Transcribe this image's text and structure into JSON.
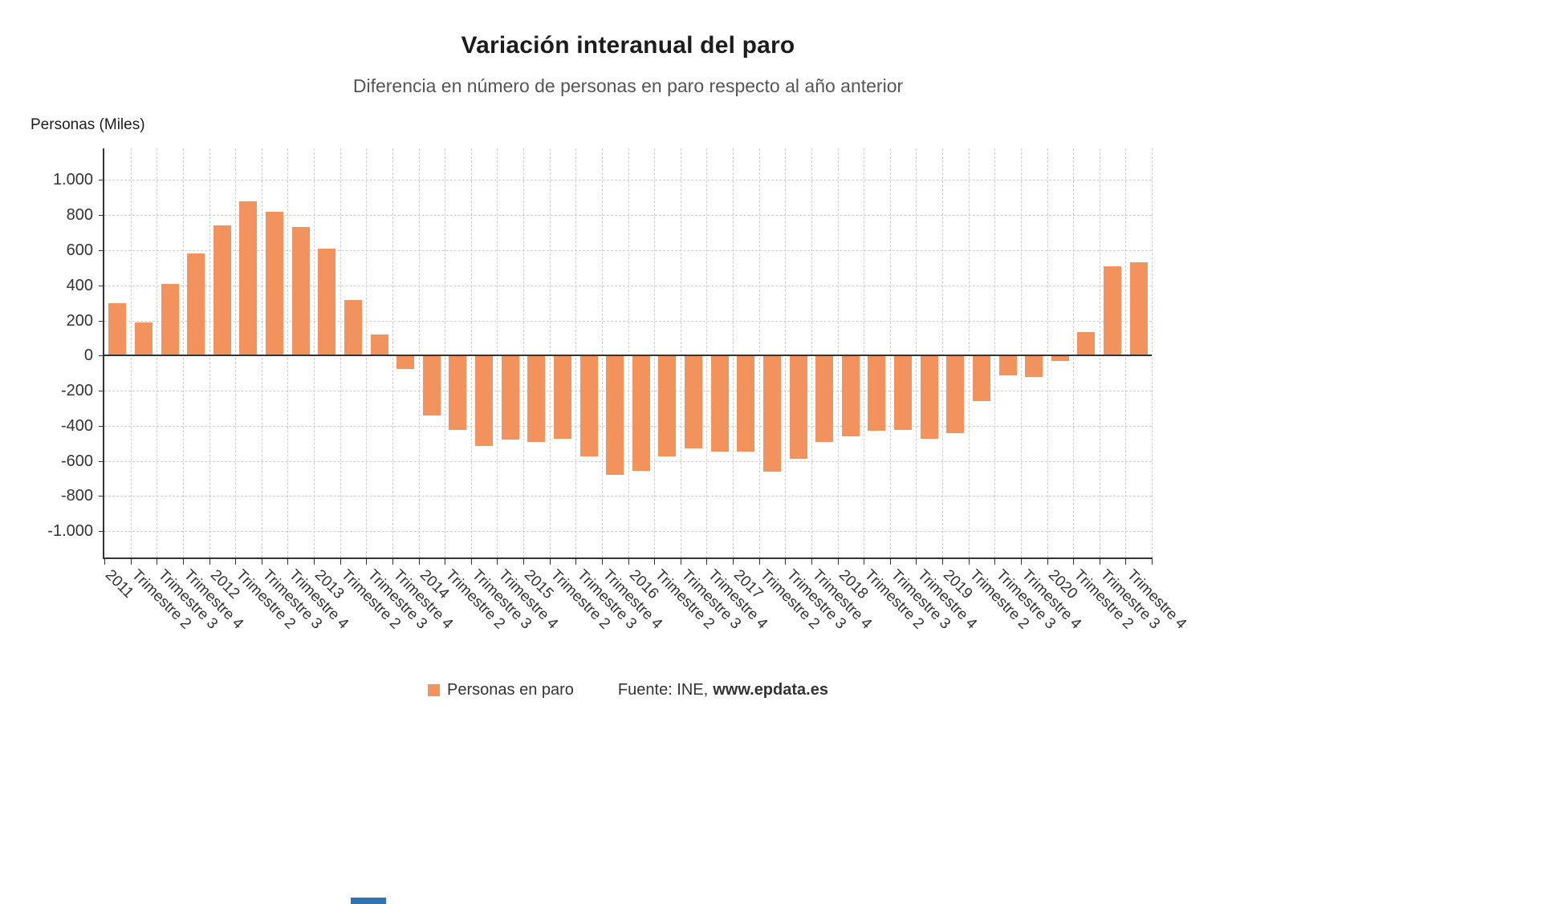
{
  "source": {
    "prefix": "Fuente: INE,",
    "site": "www.epdata.es"
  },
  "colors": {
    "bar": "#F2925C",
    "axis": "#333333",
    "grid": "#CCCCCC",
    "zero_line": "#333333",
    "title": "#1C1C1C",
    "subtitle": "#555555",
    "tick_text": "#333333",
    "logo_fragment": "#2E74B5"
  },
  "chart_data": {
    "type": "bar",
    "title": "Variación interanual del paro",
    "subtitle": "Diferencia en número de personas en paro respecto al año anterior",
    "ylabel": "Personas (Miles)",
    "xlabel": "",
    "categories": [
      "2011",
      "Trimestre 2",
      "Trimestre 3",
      "Trimestre 4",
      "2012",
      "Trimestre 2",
      "Trimestre 3",
      "Trimestre 4",
      "2013",
      "Trimestre 2",
      "Trimestre 3",
      "Trimestre 4",
      "2014",
      "Trimestre 2",
      "Trimestre 3",
      "Trimestre 4",
      "2015",
      "Trimestre 2",
      "Trimestre 3",
      "Trimestre 4",
      "2016",
      "Trimestre 2",
      "Trimestre 3",
      "Trimestre 4",
      "2017",
      "Trimestre 2",
      "Trimestre 3",
      "Trimestre 4",
      "2018",
      "Trimestre 2",
      "Trimestre 3",
      "Trimestre 4",
      "2019",
      "Trimestre 2",
      "Trimestre 3",
      "Trimestre 4",
      "2020",
      "Trimestre 2",
      "Trimestre 3",
      "Trimestre 4"
    ],
    "series": [
      {
        "name": "Personas en paro",
        "values": [
          300,
          190,
          410,
          580,
          740,
          880,
          820,
          730,
          610,
          315,
          120,
          -75,
          -340,
          -425,
          -515,
          -480,
          -490,
          -475,
          -575,
          -680,
          -655,
          -575,
          -530,
          -545,
          -545,
          -660,
          -590,
          -490,
          -460,
          -430,
          -425,
          -475,
          -440,
          -260,
          -115,
          -120,
          -30,
          135,
          510,
          530
        ]
      }
    ],
    "yticks": [
      {
        "value": 1000,
        "label": "1.000"
      },
      {
        "value": 800,
        "label": "800"
      },
      {
        "value": 600,
        "label": "600"
      },
      {
        "value": 400,
        "label": "400"
      },
      {
        "value": 200,
        "label": "200"
      },
      {
        "value": 0,
        "label": "0"
      },
      {
        "value": -200,
        "label": "-200"
      },
      {
        "value": -400,
        "label": "-400"
      },
      {
        "value": -600,
        "label": "-600"
      },
      {
        "value": -800,
        "label": "-800"
      },
      {
        "value": -1000,
        "label": "-1.000"
      }
    ],
    "ylim": [
      -1150,
      1180
    ],
    "grid": true,
    "legend_position": "bottom"
  }
}
